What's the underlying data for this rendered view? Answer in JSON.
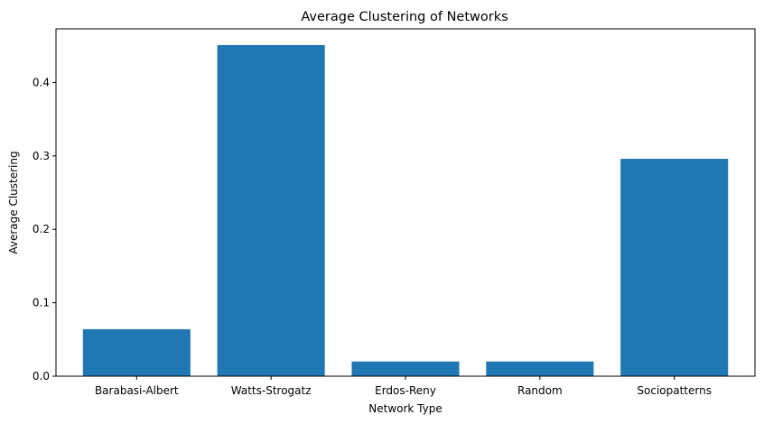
{
  "chart_data": {
    "type": "bar",
    "title": "Average Clustering of Networks",
    "xlabel": "Network Type",
    "ylabel": "Average Clustering",
    "categories": [
      "Barabasi-Albert",
      "Watts-Strogatz",
      "Erdos-Reny",
      "Random",
      "Sociopatterns"
    ],
    "values": [
      0.064,
      0.451,
      0.02,
      0.02,
      0.296
    ],
    "ylim": [
      0,
      0.473
    ],
    "yticks": [
      0.0,
      0.1,
      0.2,
      0.3,
      0.4
    ],
    "ytick_labels": [
      "0.0",
      "0.1",
      "0.2",
      "0.3",
      "0.4"
    ],
    "bar_color": "#1f77b4",
    "grid": false
  }
}
